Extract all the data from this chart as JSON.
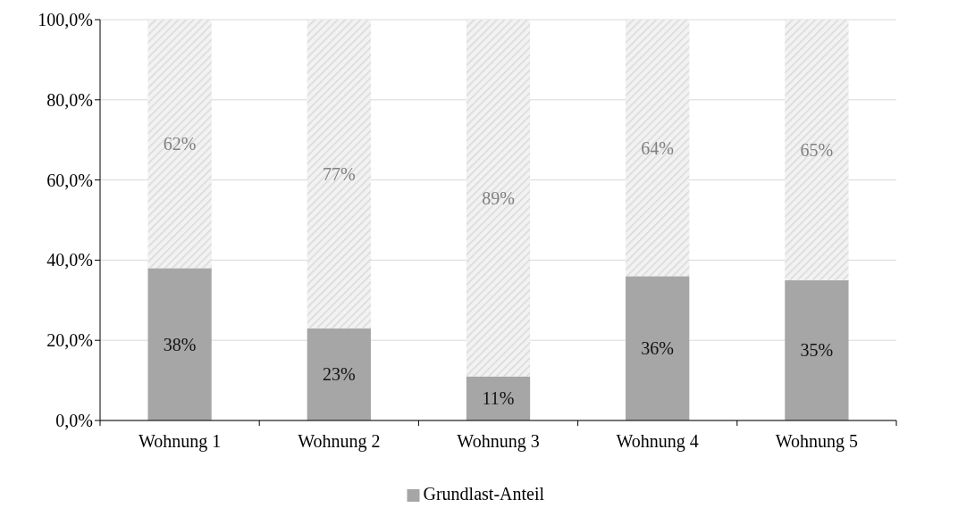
{
  "chart_data": {
    "type": "bar",
    "stacked": true,
    "categories": [
      "Wohnung 1",
      "Wohnung 2",
      "Wohnung 3",
      "Wohnung 4",
      "Wohnung 5"
    ],
    "series": [
      {
        "name": "Grundlast-Anteil",
        "color": "#a6a6a6",
        "values": [
          38,
          23,
          11,
          36,
          35
        ],
        "value_labels": [
          "38%",
          "23%",
          "11%",
          "36%",
          "35%"
        ]
      },
      {
        "color": "#d9d9d9",
        "values": [
          62,
          77,
          89,
          64,
          65
        ],
        "value_labels": [
          "62%",
          "77%",
          "89%",
          "64%",
          "65%"
        ]
      }
    ],
    "ylim": [
      0,
      100
    ],
    "yticks": [
      {
        "value": 0,
        "label": "0,0%"
      },
      {
        "value": 20,
        "label": "20,0%"
      },
      {
        "value": 40,
        "label": "40,0%"
      },
      {
        "value": 60,
        "label": "60,0%"
      },
      {
        "value": 80,
        "label": "80,0%"
      },
      {
        "value": 100,
        "label": "100,0%"
      }
    ],
    "grid": "y",
    "legend": "bottom"
  }
}
